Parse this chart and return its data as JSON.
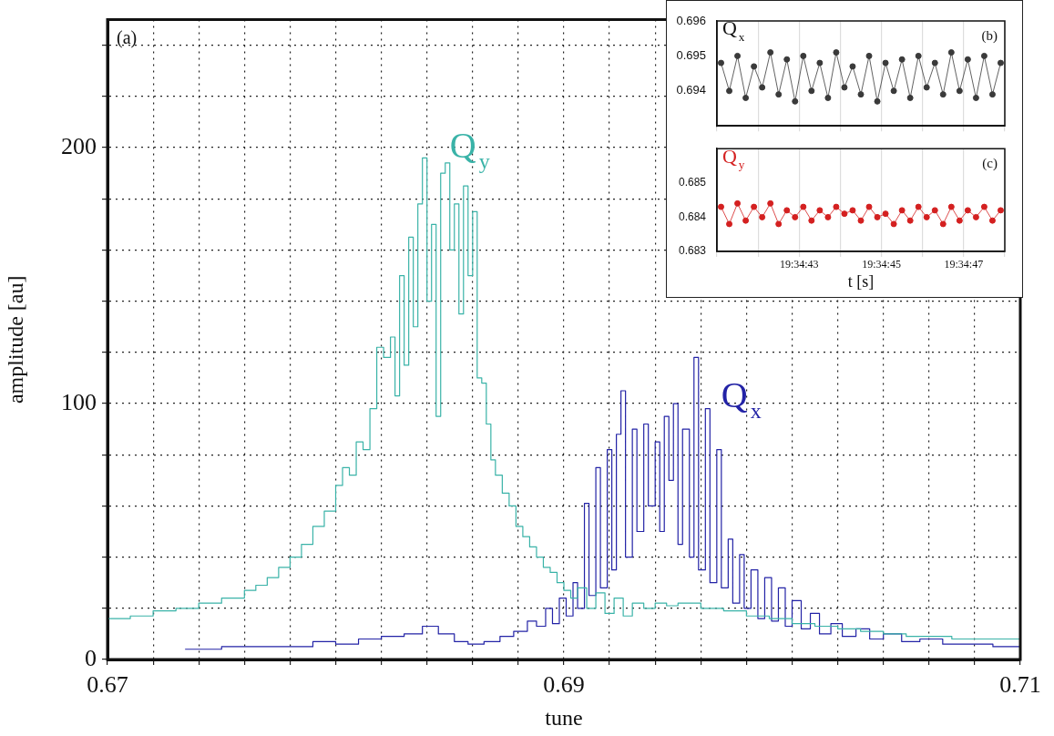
{
  "chart_data": [
    {
      "type": "step",
      "xlabel": "tune",
      "ylabel": "amplitude [au]",
      "annotations": [
        "(a)"
      ],
      "grid": true,
      "xlim": [
        0.67,
        0.71
      ],
      "xticks": [
        0.67,
        {
          "value": 0.672,
          "label": null
        },
        {
          "value": 0.674,
          "label": null
        },
        {
          "value": 0.676,
          "label": null
        },
        {
          "value": 0.678,
          "label": null
        },
        {
          "value": 0.68,
          "label": null
        },
        {
          "value": 0.682,
          "label": null
        },
        {
          "value": 0.684,
          "label": null
        },
        {
          "value": 0.686,
          "label": null
        },
        {
          "value": 0.688,
          "label": null
        },
        0.69,
        {
          "value": 0.692,
          "label": null
        },
        {
          "value": 0.694,
          "label": null
        },
        {
          "value": 0.696,
          "label": null
        },
        {
          "value": 0.698,
          "label": null
        },
        {
          "value": 0.7,
          "label": null
        },
        {
          "value": 0.702,
          "label": null
        },
        {
          "value": 0.704,
          "label": null
        },
        {
          "value": 0.706,
          "label": null
        },
        {
          "value": 0.708,
          "label": null
        },
        0.71
      ],
      "ylim": [
        0,
        250
      ],
      "yticks": [
        0,
        {
          "value": 20,
          "label": null
        },
        {
          "value": 40,
          "label": null
        },
        {
          "value": 60,
          "label": null
        },
        {
          "value": 80,
          "label": null
        },
        100,
        {
          "value": 120,
          "label": null
        },
        {
          "value": 140,
          "label": null
        },
        {
          "value": 160,
          "label": null
        },
        {
          "value": 180,
          "label": null
        },
        200,
        {
          "value": 220,
          "label": null
        },
        {
          "value": 240,
          "label": null
        }
      ],
      "series": [
        {
          "name": "Q$_{y}$",
          "color": "#3ab3a8",
          "x": [
            0.67,
            0.671,
            0.672,
            0.673,
            0.674,
            0.675,
            0.676,
            0.6765,
            0.677,
            0.6775,
            0.678,
            0.6785,
            0.679,
            0.6795,
            0.68,
            0.6803,
            0.6806,
            0.6809,
            0.6812,
            0.6815,
            0.6818,
            0.6821,
            0.6824,
            0.6826,
            0.6828,
            0.683,
            0.6832,
            0.6834,
            0.6836,
            0.6838,
            0.684,
            0.6842,
            0.6844,
            0.6846,
            0.6848,
            0.685,
            0.6852,
            0.6854,
            0.6856,
            0.6858,
            0.686,
            0.6862,
            0.6864,
            0.6866,
            0.6868,
            0.687,
            0.6873,
            0.6876,
            0.6879,
            0.6882,
            0.6885,
            0.6888,
            0.6891,
            0.6894,
            0.6897,
            0.69,
            0.6903,
            0.6906,
            0.691,
            0.6914,
            0.6918,
            0.6922,
            0.6926,
            0.693,
            0.6935,
            0.694,
            0.6945,
            0.695,
            0.696,
            0.697,
            0.698,
            0.699,
            0.7,
            0.701,
            0.702,
            0.703,
            0.704,
            0.705,
            0.706,
            0.707,
            0.708,
            0.709,
            0.71
          ],
          "values": [
            16,
            17,
            19,
            20,
            22,
            24,
            27,
            29,
            32,
            36,
            40,
            45,
            52,
            58,
            68,
            75,
            72,
            85,
            82,
            98,
            122,
            118,
            126,
            103,
            150,
            115,
            165,
            130,
            178,
            196,
            140,
            170,
            95,
            190,
            194,
            160,
            178,
            135,
            185,
            150,
            175,
            110,
            108,
            92,
            78,
            72,
            65,
            60,
            52,
            48,
            44,
            40,
            36,
            34,
            30,
            27,
            24,
            28,
            20,
            26,
            18,
            24,
            17,
            22,
            20,
            22,
            21,
            22,
            20,
            19,
            17,
            16,
            14,
            13,
            12,
            11,
            10,
            9,
            9,
            8,
            8,
            8,
            7
          ]
        },
        {
          "name": "Q$_{x}$",
          "color": "#2323a6",
          "x": [
            0.6734,
            0.675,
            0.677,
            0.679,
            0.68,
            0.681,
            0.682,
            0.683,
            0.6838,
            0.6845,
            0.6852,
            0.6858,
            0.6865,
            0.6872,
            0.6878,
            0.6884,
            0.6888,
            0.6892,
            0.6895,
            0.6898,
            0.6901,
            0.6904,
            0.6906,
            0.6909,
            0.6911,
            0.6914,
            0.6916,
            0.6919,
            0.6921,
            0.6923,
            0.6925,
            0.6927,
            0.693,
            0.6932,
            0.6935,
            0.6937,
            0.694,
            0.6942,
            0.6944,
            0.6946,
            0.6948,
            0.695,
            0.6952,
            0.6955,
            0.6957,
            0.6959,
            0.6962,
            0.6964,
            0.6967,
            0.6969,
            0.6972,
            0.6974,
            0.6977,
            0.6979,
            0.6982,
            0.6985,
            0.6988,
            0.6991,
            0.6994,
            0.6997,
            0.7,
            0.7004,
            0.7008,
            0.7012,
            0.7017,
            0.7022,
            0.7028,
            0.7034,
            0.704,
            0.7048,
            0.7056,
            0.7066,
            0.7076,
            0.7088,
            0.71
          ],
          "values": [
            4,
            5,
            5,
            7,
            6,
            8,
            9,
            10,
            13,
            10,
            7,
            6,
            7,
            9,
            11,
            15,
            13,
            20,
            14,
            24,
            17,
            30,
            20,
            61,
            25,
            75,
            28,
            82,
            35,
            88,
            105,
            40,
            90,
            50,
            92,
            60,
            85,
            50,
            95,
            70,
            100,
            45,
            90,
            40,
            118,
            35,
            98,
            30,
            82,
            28,
            47,
            22,
            41,
            20,
            35,
            16,
            32,
            15,
            28,
            13,
            23,
            12,
            18,
            10,
            14,
            9,
            12,
            8,
            10,
            7,
            8,
            6,
            6,
            5,
            5
          ]
        }
      ]
    },
    {
      "type": "line",
      "marker": "circle",
      "annotations": [
        "(b)"
      ],
      "grid": "x",
      "tick_labels": "y",
      "xlim": [
        19.5780556,
        19.58
      ],
      "xticks": [
        {
          "value": 19.5780556,
          "label": null
        },
        {
          "value": 19.5783333,
          "label": null
        },
        {
          "value": 19.5786111,
          "label": null
        },
        {
          "value": 19.5788889,
          "label": null
        },
        {
          "value": 19.5791667,
          "label": null
        },
        {
          "value": 19.5794444,
          "label": null
        },
        {
          "value": 19.5797222,
          "label": null
        },
        {
          "value": 19.58,
          "label": null
        }
      ],
      "ylim": [
        0.693,
        0.696
      ],
      "yticks": [
        0.694,
        0.695,
        0.696
      ],
      "series": [
        {
          "name": "Q$_{x}$",
          "color": "#3a3a3a",
          "x": [
            19.5780833,
            19.5781389,
            19.5781944,
            19.57825,
            19.5783056,
            19.5783611,
            19.5784167,
            19.5784722,
            19.5785278,
            19.5785833,
            19.5786389,
            19.5786944,
            19.57875,
            19.5788056,
            19.5788611,
            19.5789167,
            19.5789722,
            19.5790278,
            19.5790833,
            19.5791389,
            19.5791944,
            19.57925,
            19.5793056,
            19.5793611,
            19.5794167,
            19.5794722,
            19.5795278,
            19.5795833,
            19.5796389,
            19.5796944,
            19.57975,
            19.5798056,
            19.5798611,
            19.5799167,
            19.5799722
          ],
          "values": [
            0.6948,
            0.694,
            0.695,
            0.6938,
            0.6947,
            0.6941,
            0.6951,
            0.6939,
            0.6949,
            0.6937,
            0.695,
            0.694,
            0.6948,
            0.6938,
            0.6951,
            0.6941,
            0.6947,
            0.6939,
            0.695,
            0.6937,
            0.6948,
            0.694,
            0.6949,
            0.6938,
            0.695,
            0.6941,
            0.6948,
            0.6939,
            0.6951,
            0.694,
            0.6949,
            0.6938,
            0.695,
            0.6939,
            0.6948
          ]
        }
      ]
    },
    {
      "type": "line",
      "marker": "circle",
      "annotations": [
        "(c)"
      ],
      "grid": "x",
      "xlabel": "t [s]",
      "xlim": [
        19.5780556,
        19.58
      ],
      "xticks": [
        {
          "value": 19.5780556,
          "label": null
        },
        {
          "value": 19.5783333,
          "label": null
        },
        {
          "value": 19.5786111,
          "label": "19:34:43"
        },
        {
          "value": 19.5788889,
          "label": null
        },
        {
          "value": 19.5791667,
          "label": "19:34:45"
        },
        {
          "value": 19.5794444,
          "label": null
        },
        {
          "value": 19.5797222,
          "label": "19:34:47"
        },
        {
          "value": 19.58,
          "label": null
        }
      ],
      "ylim": [
        0.683,
        0.686
      ],
      "yticks": [
        0.683,
        0.684,
        0.685
      ],
      "series": [
        {
          "name": "Q$_{y}$",
          "color": "#d42020",
          "x": [
            19.5780833,
            19.5781389,
            19.5781944,
            19.57825,
            19.5783056,
            19.5783611,
            19.5784167,
            19.5784722,
            19.5785278,
            19.5785833,
            19.5786389,
            19.5786944,
            19.57875,
            19.5788056,
            19.5788611,
            19.5789167,
            19.5789722,
            19.5790278,
            19.5790833,
            19.5791389,
            19.5791944,
            19.57925,
            19.5793056,
            19.5793611,
            19.5794167,
            19.5794722,
            19.5795278,
            19.5795833,
            19.5796389,
            19.5796944,
            19.57975,
            19.5798056,
            19.5798611,
            19.5799167,
            19.5799722
          ],
          "values": [
            0.6843,
            0.6838,
            0.6844,
            0.6839,
            0.6843,
            0.684,
            0.6844,
            0.6838,
            0.6842,
            0.684,
            0.6843,
            0.6839,
            0.6842,
            0.684,
            0.6843,
            0.6841,
            0.6842,
            0.6839,
            0.6843,
            0.684,
            0.6841,
            0.6838,
            0.6842,
            0.6839,
            0.6843,
            0.684,
            0.6842,
            0.6838,
            0.6843,
            0.6839,
            0.6842,
            0.684,
            0.6843,
            0.6839,
            0.6842
          ]
        }
      ]
    }
  ]
}
